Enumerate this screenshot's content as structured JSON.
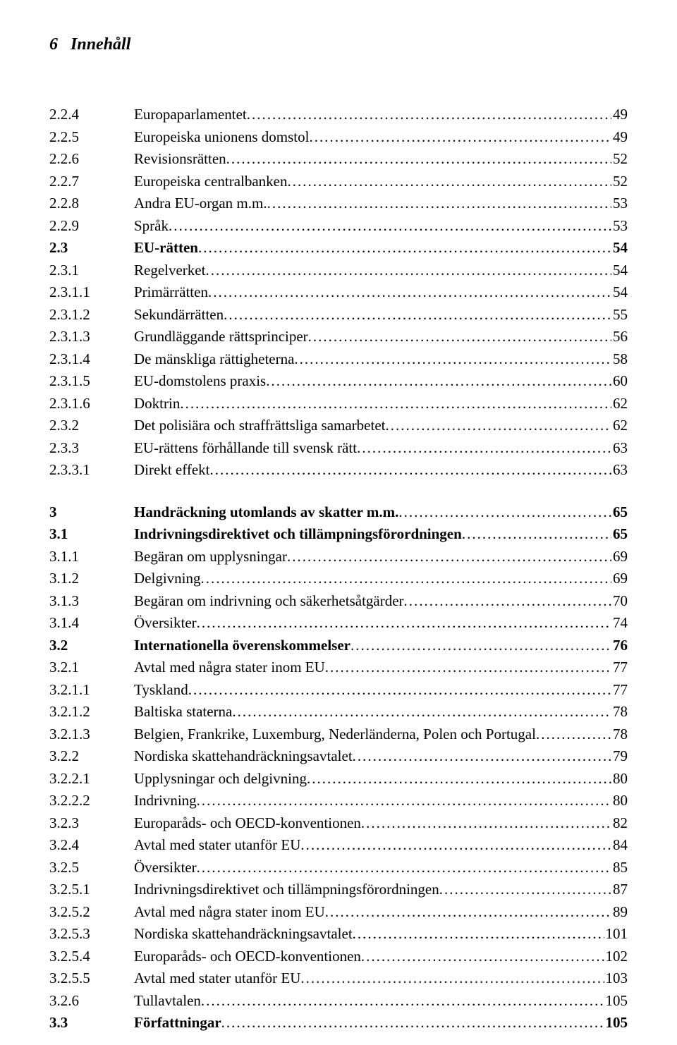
{
  "header": {
    "page_num": "6",
    "title": "Innehåll"
  },
  "toc": [
    {
      "num": "2.2.4",
      "label": "Europaparlamentet",
      "page": "49",
      "bold": false
    },
    {
      "num": "2.2.5",
      "label": "Europeiska unionens domstol",
      "page": "49",
      "bold": false
    },
    {
      "num": "2.2.6",
      "label": "Revisionsrätten",
      "page": "52",
      "bold": false
    },
    {
      "num": "2.2.7",
      "label": "Europeiska centralbanken",
      "page": "52",
      "bold": false
    },
    {
      "num": "2.2.8",
      "label": "Andra EU-organ m.m.",
      "page": "53",
      "bold": false
    },
    {
      "num": "2.2.9",
      "label": "Språk",
      "page": "53",
      "bold": false
    },
    {
      "num": "2.3",
      "label": "EU-rätten",
      "page": "54",
      "bold": true
    },
    {
      "num": "2.3.1",
      "label": "Regelverket",
      "page": "54",
      "bold": false
    },
    {
      "num": "2.3.1.1",
      "label": "Primärrätten",
      "page": "54",
      "bold": false
    },
    {
      "num": "2.3.1.2",
      "label": "Sekundärrätten",
      "page": "55",
      "bold": false
    },
    {
      "num": "2.3.1.3",
      "label": "Grundläggande rättsprinciper",
      "page": "56",
      "bold": false
    },
    {
      "num": "2.3.1.4",
      "label": "De mänskliga rättigheterna",
      "page": "58",
      "bold": false
    },
    {
      "num": "2.3.1.5",
      "label": "EU-domstolens praxis",
      "page": "60",
      "bold": false
    },
    {
      "num": "2.3.1.6",
      "label": "Doktrin",
      "page": "62",
      "bold": false
    },
    {
      "num": "2.3.2",
      "label": "Det polisiära och straffrättsliga samarbetet",
      "page": "62",
      "bold": false
    },
    {
      "num": "2.3.3",
      "label": "EU-rättens förhållande till svensk rätt",
      "page": "63",
      "bold": false
    },
    {
      "num": "2.3.3.1",
      "label": "Direkt effekt",
      "page": "63",
      "bold": false
    },
    {
      "gap": true
    },
    {
      "num": "3",
      "label": "Handräckning utomlands av skatter m.m. ",
      "page": " 65",
      "bold": true
    },
    {
      "num": "3.1",
      "label": "Indrivningsdirektivet och tillämpningsförordningen",
      "page": "65",
      "bold": true
    },
    {
      "num": "3.1.1",
      "label": "Begäran om upplysningar",
      "page": "69",
      "bold": false
    },
    {
      "num": "3.1.2",
      "label": "Delgivning",
      "page": "69",
      "bold": false
    },
    {
      "num": "3.1.3",
      "label": "Begäran om indrivning och säkerhetsåtgärder",
      "page": "70",
      "bold": false
    },
    {
      "num": "3.1.4",
      "label": "Översikter",
      "page": "74",
      "bold": false
    },
    {
      "num": "3.2",
      "label": "Internationella överenskommelser",
      "page": "76",
      "bold": true
    },
    {
      "num": "3.2.1",
      "label": "Avtal med några stater inom EU",
      "page": "77",
      "bold": false
    },
    {
      "num": "3.2.1.1",
      "label": "Tyskland",
      "page": "77",
      "bold": false
    },
    {
      "num": "3.2.1.2",
      "label": "Baltiska staterna",
      "page": "78",
      "bold": false
    },
    {
      "num": "3.2.1.3",
      "label": "Belgien, Frankrike, Luxemburg, Nederländerna, Polen och Portugal",
      "page": "78",
      "bold": false
    },
    {
      "num": "3.2.2",
      "label": "Nordiska skattehandräckningsavtalet",
      "page": "79",
      "bold": false
    },
    {
      "num": "3.2.2.1",
      "label": "Upplysningar och delgivning",
      "page": "80",
      "bold": false
    },
    {
      "num": "3.2.2.2",
      "label": "Indrivning",
      "page": "80",
      "bold": false
    },
    {
      "num": "3.2.3",
      "label": "Europaråds- och OECD-konventionen",
      "page": "82",
      "bold": false
    },
    {
      "num": "3.2.4",
      "label": "Avtal med stater utanför EU",
      "page": "84",
      "bold": false
    },
    {
      "num": "3.2.5",
      "label": "Översikter",
      "page": "85",
      "bold": false
    },
    {
      "num": "3.2.5.1",
      "label": "Indrivningsdirektivet och tillämpningsförordningen",
      "page": "87",
      "bold": false
    },
    {
      "num": "3.2.5.2",
      "label": "Avtal med några stater inom EU",
      "page": "89",
      "bold": false
    },
    {
      "num": "3.2.5.3",
      "label": "Nordiska skattehandräckningsavtalet",
      "page": "101",
      "bold": false
    },
    {
      "num": "3.2.5.4",
      "label": "Europaråds- och OECD-konventionen",
      "page": "102",
      "bold": false
    },
    {
      "num": "3.2.5.5",
      "label": "Avtal med stater utanför EU",
      "page": "103",
      "bold": false
    },
    {
      "num": "3.2.6",
      "label": "Tullavtalen",
      "page": "105",
      "bold": false
    },
    {
      "num": "3.3",
      "label": "Författningar",
      "page": "105",
      "bold": true
    }
  ]
}
